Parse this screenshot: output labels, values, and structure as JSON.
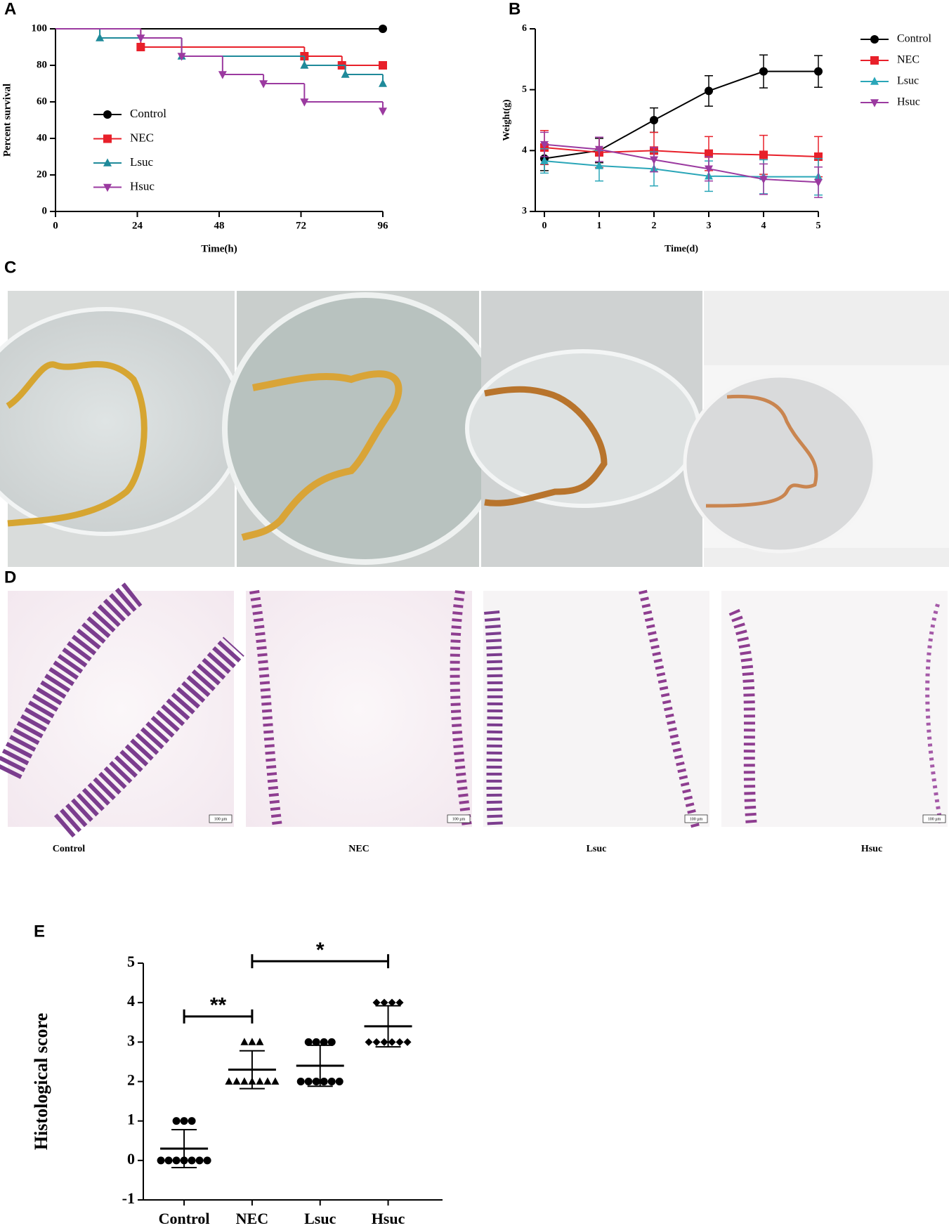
{
  "panel_labels": [
    "A",
    "B",
    "C",
    "D",
    "E"
  ],
  "histology_labels": [
    "Control",
    "NEC",
    "Lsuc",
    "Hsuc"
  ],
  "scale_bar": "100 µm",
  "chart_data": [
    {
      "type": "step",
      "xlabel": "Time(h)",
      "ylabel": "Percent survival",
      "xlim": [
        0,
        96
      ],
      "xticks": [
        0,
        24,
        48,
        72,
        96
      ],
      "ylim": [
        0,
        100
      ],
      "yticks": [
        0,
        20,
        40,
        60,
        80,
        100
      ],
      "legend": "inside-left",
      "series": [
        {
          "name": "Control",
          "color": "#000000",
          "marker": "circle",
          "x": [
            0,
            96
          ],
          "values": [
            100,
            100
          ]
        },
        {
          "name": "NEC",
          "color": "#e8202a",
          "marker": "square",
          "x": [
            0,
            25,
            73,
            84,
            96
          ],
          "values": [
            100,
            90,
            85,
            80,
            80
          ]
        },
        {
          "name": "Lsuc",
          "color": "#1f8a9a",
          "marker": "triangle-up",
          "x": [
            0,
            13,
            37,
            73,
            85,
            96
          ],
          "values": [
            100,
            95,
            85,
            80,
            75,
            70
          ]
        },
        {
          "name": "Hsuc",
          "color": "#9b3aa0",
          "marker": "triangle-down",
          "x": [
            0,
            25,
            37,
            49,
            61,
            73,
            96
          ],
          "values": [
            100,
            95,
            85,
            75,
            70,
            60,
            55
          ]
        }
      ]
    },
    {
      "type": "line",
      "xlabel": "Time(d)",
      "ylabel": "Weight(g)",
      "x": [
        0,
        1,
        2,
        3,
        4,
        5
      ],
      "xlim": [
        0,
        5
      ],
      "xticks": [
        0,
        1,
        2,
        3,
        4,
        5
      ],
      "ylim": [
        3,
        6
      ],
      "yticks": [
        3,
        4,
        5,
        6
      ],
      "legend": "outside-right",
      "series": [
        {
          "name": "Control",
          "color": "#000000",
          "marker": "circle",
          "values": [
            3.87,
            4.0,
            4.5,
            4.98,
            5.3,
            5.3
          ],
          "errors": [
            0.2,
            0.2,
            0.2,
            0.25,
            0.27,
            0.26
          ]
        },
        {
          "name": "NEC",
          "color": "#e8202a",
          "marker": "square",
          "values": [
            4.05,
            3.97,
            4.0,
            3.95,
            3.93,
            3.9
          ],
          "errors": [
            0.28,
            0.25,
            0.3,
            0.28,
            0.32,
            0.33
          ]
        },
        {
          "name": "Lsuc",
          "color": "#2aa6b8",
          "marker": "triangle-up",
          "values": [
            3.83,
            3.75,
            3.7,
            3.58,
            3.57,
            3.57
          ],
          "errors": [
            0.2,
            0.25,
            0.28,
            0.25,
            0.28,
            0.3
          ]
        },
        {
          "name": "Hsuc",
          "color": "#9b3aa0",
          "marker": "triangle-down",
          "values": [
            4.1,
            4.02,
            3.85,
            3.7,
            3.53,
            3.48
          ],
          "errors": [
            0.2,
            0.2,
            0.2,
            0.2,
            0.25,
            0.25
          ]
        }
      ]
    },
    {
      "type": "dotplot",
      "ylabel": "Histological score",
      "categories": [
        "Control",
        "NEC",
        "Lsuc",
        "Hsuc"
      ],
      "ylim": [
        -1,
        5
      ],
      "yticks": [
        -1,
        0,
        1,
        2,
        3,
        4,
        5
      ],
      "color": "#000000",
      "groups": [
        {
          "marker": "circle",
          "values": [
            0,
            0,
            0,
            0,
            0,
            0,
            0,
            1,
            1,
            1
          ],
          "mean": 0.3,
          "sd": 0.48
        },
        {
          "marker": "triangle-up",
          "values": [
            2,
            2,
            2,
            2,
            2,
            2,
            2,
            3,
            3,
            3
          ],
          "mean": 2.3,
          "sd": 0.48
        },
        {
          "marker": "circle",
          "values": [
            2,
            2,
            2,
            2,
            2,
            2,
            3,
            3,
            3,
            3
          ],
          "mean": 2.4,
          "sd": 0.52
        },
        {
          "marker": "diamond",
          "values": [
            3,
            3,
            3,
            3,
            3,
            3,
            4,
            4,
            4,
            4
          ],
          "mean": 3.4,
          "sd": 0.52
        }
      ],
      "annotations": [
        {
          "text": "**",
          "between": [
            0,
            1
          ]
        },
        {
          "text": "*",
          "between": [
            1,
            3
          ]
        }
      ]
    }
  ]
}
